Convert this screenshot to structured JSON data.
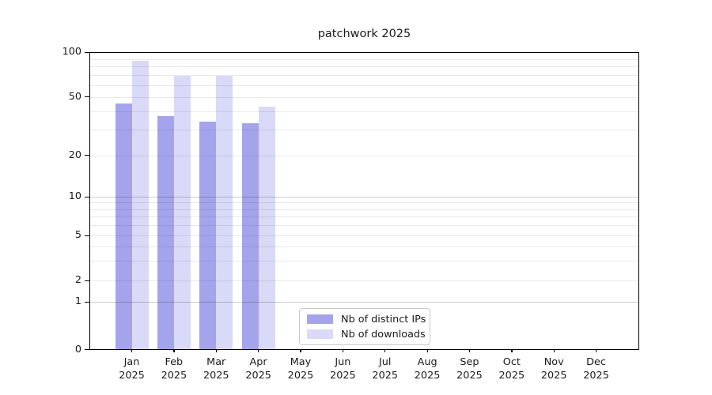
{
  "chart_data": {
    "type": "bar",
    "title": "patchwork 2025",
    "categories": [
      "Jan",
      "Feb",
      "Mar",
      "Apr",
      "May",
      "Jun",
      "Jul",
      "Aug",
      "Sep",
      "Oct",
      "Nov",
      "Dec"
    ],
    "year_label": "2025",
    "series": [
      {
        "name": "Nb of distinct IPs",
        "color": "#a4a4ec",
        "values": [
          45,
          37,
          34,
          33,
          0,
          0,
          0,
          0,
          0,
          0,
          0,
          0
        ]
      },
      {
        "name": "Nb of downloads",
        "color": "#d9d9f8",
        "values": [
          87,
          69,
          69,
          43,
          0,
          0,
          0,
          0,
          0,
          0,
          0,
          0
        ]
      }
    ],
    "y_scale": "log-like (log of value+1, linear below 1)",
    "ylim": [
      0,
      100
    ],
    "y_ticks": [
      0,
      1,
      2,
      5,
      10,
      20,
      50,
      100
    ],
    "gridlines": {
      "minor": [
        2,
        3,
        4,
        5,
        6,
        7,
        8,
        9,
        20,
        30,
        40,
        50,
        60,
        70,
        80,
        90
      ],
      "major": [
        1,
        10
      ]
    },
    "legend_position": "lower center inside plot",
    "grid": "on"
  }
}
